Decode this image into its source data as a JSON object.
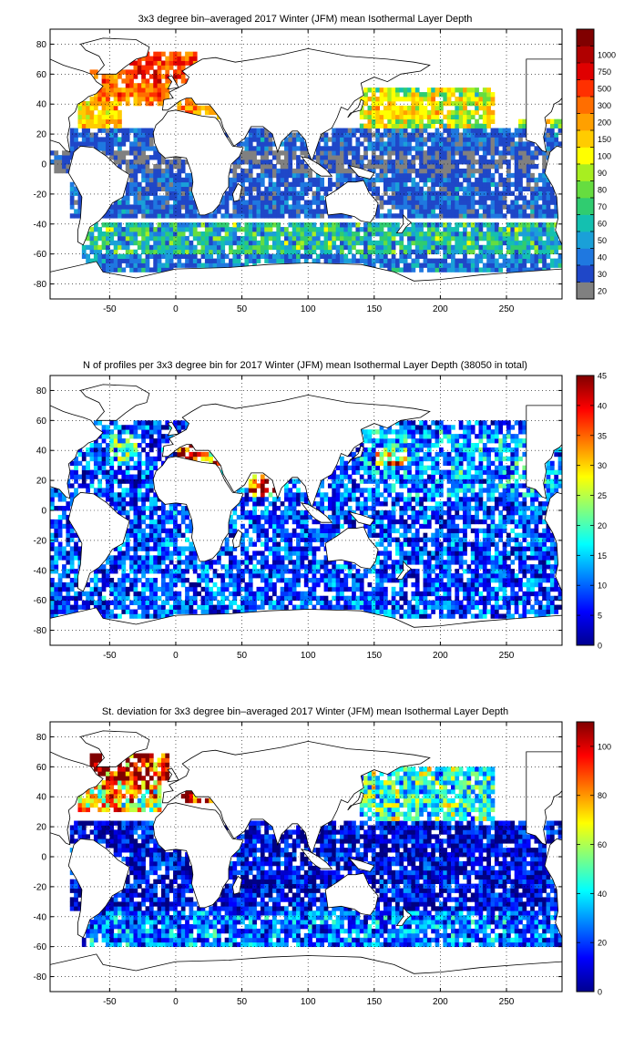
{
  "colors": {
    "land": "#ffffff",
    "no_data_class": "#808080",
    "axis": "#000000",
    "grid": "#000000"
  },
  "chart_data": [
    {
      "type": "heatmap",
      "title": "3x3 degree bin–averaged 2017 Winter (JFM) mean Isothermal Layer Depth",
      "xlim": [
        -95,
        292
      ],
      "ylim": [
        -90,
        90
      ],
      "xticks": [
        -50,
        0,
        50,
        100,
        150,
        200,
        250
      ],
      "yticks": [
        -80,
        -60,
        -40,
        -20,
        0,
        20,
        40,
        60,
        80
      ],
      "grid": "dotted",
      "colorbar": {
        "kind": "discrete",
        "labels": [
          "20",
          "30",
          "40",
          "50",
          "60",
          "70",
          "80",
          "90",
          "100",
          "150",
          "200",
          "300",
          "500",
          "750",
          "1000"
        ],
        "colors": [
          "#808080",
          "#1f47c8",
          "#1f78e0",
          "#1aa0d8",
          "#14c0b0",
          "#30cc70",
          "#66dd40",
          "#a8ee20",
          "#ffff00",
          "#ffcc00",
          "#ffa000",
          "#ff6e00",
          "#ff3000",
          "#e00000",
          "#b00000",
          "#800000"
        ]
      },
      "regions": [
        {
          "lon": [
            -65,
            -5
          ],
          "lat": [
            38,
            62
          ],
          "value": 300
        },
        {
          "lon": [
            -40,
            15
          ],
          "lat": [
            55,
            75
          ],
          "value": 500
        },
        {
          "lon": [
            -75,
            -40
          ],
          "lat": [
            25,
            42
          ],
          "value": 150
        },
        {
          "lon": [
            0,
            40
          ],
          "lat": [
            30,
            45
          ],
          "value": 200
        },
        {
          "lon": [
            140,
            240
          ],
          "lat": [
            25,
            50
          ],
          "value": 100
        },
        {
          "lon": [
            150,
            200
          ],
          "lat": [
            30,
            45
          ],
          "value": 150
        },
        {
          "lon": [
            260,
            292
          ],
          "lat": [
            15,
            30
          ],
          "value": 100
        },
        {
          "lon": [
            -80,
            140
          ],
          "lat": [
            -35,
            25
          ],
          "value": 30
        },
        {
          "lon": [
            140,
            292
          ],
          "lat": [
            -35,
            25
          ],
          "value": 30
        },
        {
          "lon": [
            -70,
            292
          ],
          "lat": [
            -60,
            -40
          ],
          "value": 60
        },
        {
          "lon": [
            -70,
            292
          ],
          "lat": [
            -72,
            -60
          ],
          "value": 40
        },
        {
          "lon": [
            -95,
            292
          ],
          "lat": [
            -6,
            8
          ],
          "value": 20
        }
      ]
    },
    {
      "type": "heatmap",
      "title": "N of profiles per 3x3 degree bin for 2017 Winter (JFM) mean Isothermal Layer Depth  (38050 in total)",
      "xlim": [
        -95,
        292
      ],
      "ylim": [
        -90,
        90
      ],
      "xticks": [
        -50,
        0,
        50,
        100,
        150,
        200,
        250
      ],
      "yticks": [
        -80,
        -60,
        -40,
        -20,
        0,
        20,
        40,
        60,
        80
      ],
      "grid": "dotted",
      "colorbar": {
        "kind": "continuous",
        "min": 0,
        "max": 45,
        "ticks": [
          0,
          5,
          10,
          15,
          20,
          25,
          30,
          35,
          40,
          45
        ]
      },
      "regions": [
        {
          "lon": [
            -95,
            292
          ],
          "lat": [
            -72,
            60
          ],
          "value": 8
        },
        {
          "lon": [
            140,
            292
          ],
          "lat": [
            10,
            55
          ],
          "value": 12
        },
        {
          "lon": [
            0,
            40
          ],
          "lat": [
            30,
            45
          ],
          "value": 40
        },
        {
          "lon": [
            55,
            75
          ],
          "lat": [
            10,
            25
          ],
          "value": 35
        },
        {
          "lon": [
            150,
            175
          ],
          "lat": [
            30,
            42
          ],
          "value": 30
        },
        {
          "lon": [
            -50,
            -30
          ],
          "lat": [
            30,
            50
          ],
          "value": 18
        }
      ]
    },
    {
      "type": "heatmap",
      "title": "St. deviation for 3x3 degree bin–averaged 2017 Winter (JFM) mean Isothermal Layer Depth",
      "xlim": [
        -95,
        292
      ],
      "ylim": [
        -90,
        90
      ],
      "xticks": [
        -50,
        0,
        50,
        100,
        150,
        200,
        250
      ],
      "yticks": [
        -80,
        -60,
        -40,
        -20,
        0,
        20,
        40,
        60,
        80
      ],
      "grid": "dotted",
      "colorbar": {
        "kind": "continuous",
        "min": 0,
        "max": 110,
        "ticks": [
          0,
          20,
          40,
          60,
          80,
          100
        ]
      },
      "regions": [
        {
          "lon": [
            -65,
            -5
          ],
          "lat": [
            50,
            68
          ],
          "value": 110
        },
        {
          "lon": [
            -75,
            -10
          ],
          "lat": [
            30,
            50
          ],
          "value": 70
        },
        {
          "lon": [
            0,
            40
          ],
          "lat": [
            36,
            45
          ],
          "value": 100
        },
        {
          "lon": [
            140,
            240
          ],
          "lat": [
            25,
            60
          ],
          "value": 45
        },
        {
          "lon": [
            -80,
            292
          ],
          "lat": [
            -35,
            25
          ],
          "value": 10
        },
        {
          "lon": [
            -70,
            292
          ],
          "lat": [
            -60,
            -35
          ],
          "value": 25
        }
      ]
    }
  ]
}
